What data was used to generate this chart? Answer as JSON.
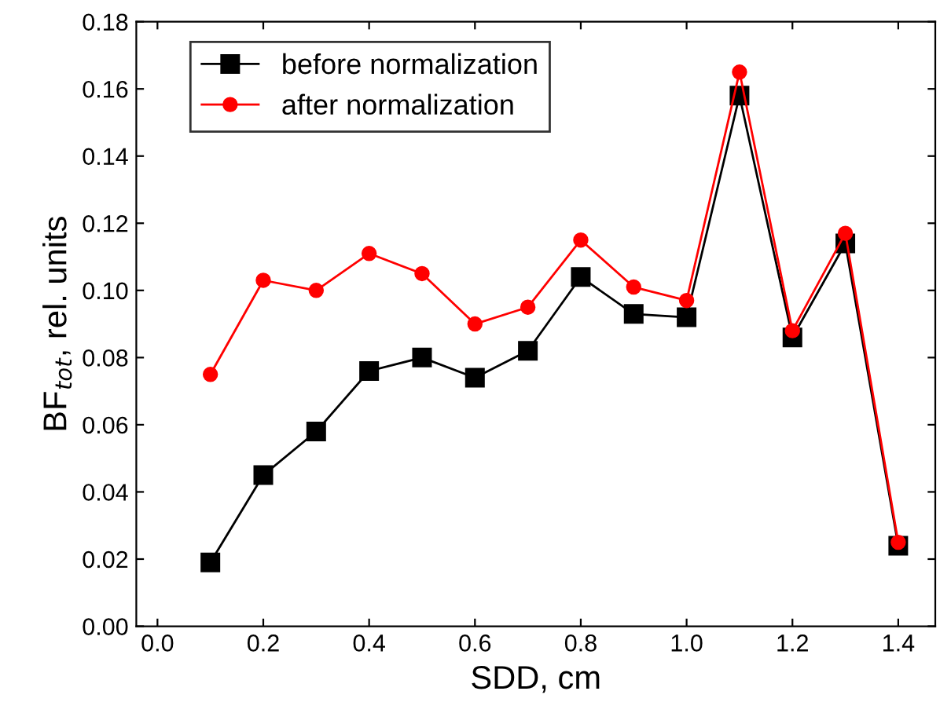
{
  "chart_data": {
    "type": "line",
    "xlabel": "SDD, cm",
    "ylabel": "BF$_{tot}$, rel. units",
    "x": [
      0.1,
      0.2,
      0.3,
      0.4,
      0.5,
      0.6,
      0.7,
      0.8,
      0.9,
      1.0,
      1.1,
      1.2,
      1.3,
      1.4
    ],
    "series": [
      {
        "name": "before normalization",
        "color": "#000000",
        "marker": "square",
        "values": [
          0.019,
          0.045,
          0.058,
          0.076,
          0.08,
          0.074,
          0.082,
          0.104,
          0.093,
          0.092,
          0.158,
          0.086,
          0.114,
          0.024
        ]
      },
      {
        "name": "after normalization",
        "color": "#ff0000",
        "marker": "circle",
        "values": [
          0.075,
          0.103,
          0.1,
          0.111,
          0.105,
          0.09,
          0.095,
          0.115,
          0.101,
          0.097,
          0.165,
          0.088,
          0.117,
          0.025
        ]
      }
    ],
    "xlim": [
      -0.04,
      1.47
    ],
    "ylim": [
      0,
      0.18
    ],
    "xticks": [
      {
        "value": 0,
        "label": "0.0"
      },
      {
        "value": 0.2,
        "label": "0.2"
      },
      {
        "value": 0.4,
        "label": "0.4"
      },
      {
        "value": 0.6,
        "label": "0.6"
      },
      {
        "value": 0.8,
        "label": "0.8"
      },
      {
        "value": 1.0,
        "label": "1.0"
      },
      {
        "value": 1.2,
        "label": "1.2"
      },
      {
        "value": 1.4,
        "label": "1.4"
      }
    ],
    "yticks": [
      {
        "value": 0,
        "label": "0.00"
      },
      {
        "value": 0.02,
        "label": "0.02"
      },
      {
        "value": 0.04,
        "label": "0.04"
      },
      {
        "value": 0.06,
        "label": "0.06"
      },
      {
        "value": 0.08,
        "label": "0.08"
      },
      {
        "value": 0.1,
        "label": "0.10"
      },
      {
        "value": 0.12,
        "label": "0.12"
      },
      {
        "value": 0.14,
        "label": "0.14"
      },
      {
        "value": 0.16,
        "label": "0.16"
      },
      {
        "value": 0.18,
        "label": "0.18"
      }
    ],
    "legend": "top left",
    "grid": false,
    "line_style": "solid"
  }
}
